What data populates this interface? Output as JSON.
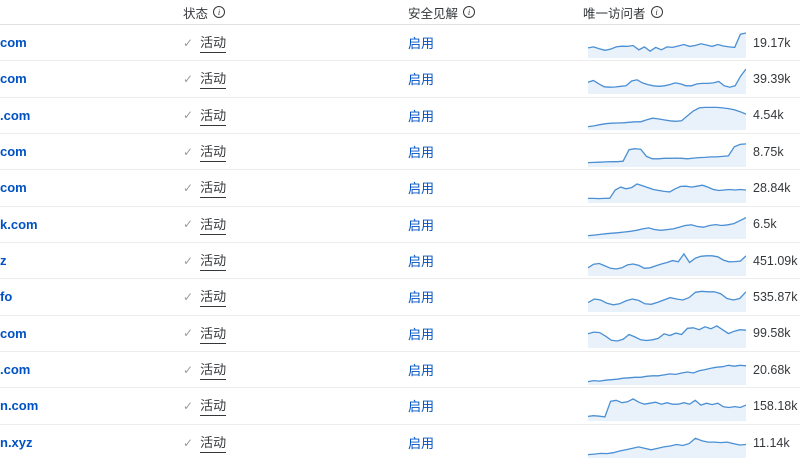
{
  "header": {
    "status_label": "状态",
    "security_label": "安全见解",
    "visitors_label": "唯一访问者"
  },
  "icons": {
    "check": "✓",
    "info": "i"
  },
  "colors": {
    "link_blue": "#0051c3",
    "text_dark": "#35383b",
    "check_gray": "#9a9c9e",
    "separator": "#ececec",
    "spark_line": "#4a8fd4",
    "spark_fill": "#e9f2fb"
  },
  "rows": [
    {
      "domain": "com",
      "status": "活动",
      "security": "启用",
      "visitors": "19.17k",
      "spark": [
        0.38,
        0.42,
        0.34,
        0.28,
        0.33,
        0.42,
        0.45,
        0.44,
        0.48,
        0.3,
        0.42,
        0.24,
        0.4,
        0.3,
        0.42,
        0.4,
        0.46,
        0.52,
        0.44,
        0.48,
        0.55,
        0.5,
        0.44,
        0.52,
        0.46,
        0.42,
        0.4,
        0.95,
        1.0
      ]
    },
    {
      "domain": "com",
      "status": "活动",
      "security": "启用",
      "visitors": "39.39k",
      "spark": [
        0.45,
        0.52,
        0.38,
        0.26,
        0.24,
        0.25,
        0.28,
        0.3,
        0.5,
        0.55,
        0.42,
        0.35,
        0.3,
        0.28,
        0.3,
        0.35,
        0.42,
        0.38,
        0.3,
        0.3,
        0.38,
        0.4,
        0.4,
        0.42,
        0.48,
        0.3,
        0.24,
        0.3,
        0.7,
        1.0
      ]
    },
    {
      "domain": ".com",
      "status": "活动",
      "security": "启用",
      "visitors": "4.54k",
      "spark": [
        0.1,
        0.13,
        0.18,
        0.22,
        0.24,
        0.25,
        0.26,
        0.28,
        0.3,
        0.3,
        0.38,
        0.45,
        0.42,
        0.38,
        0.34,
        0.32,
        0.34,
        0.55,
        0.75,
        0.88,
        0.9,
        0.9,
        0.9,
        0.88,
        0.85,
        0.8,
        0.72,
        0.62
      ]
    },
    {
      "domain": "com",
      "status": "活动",
      "security": "启用",
      "visitors": "8.75k",
      "spark": [
        0.14,
        0.15,
        0.16,
        0.17,
        0.18,
        0.18,
        0.2,
        0.68,
        0.72,
        0.7,
        0.4,
        0.3,
        0.3,
        0.32,
        0.32,
        0.33,
        0.32,
        0.3,
        0.33,
        0.35,
        0.36,
        0.38,
        0.38,
        0.4,
        0.42,
        0.8,
        0.9,
        0.92
      ]
    },
    {
      "domain": "com",
      "status": "活动",
      "security": "启用",
      "visitors": "28.84k",
      "spark": [
        0.15,
        0.15,
        0.14,
        0.15,
        0.16,
        0.5,
        0.62,
        0.55,
        0.6,
        0.75,
        0.68,
        0.6,
        0.52,
        0.48,
        0.44,
        0.42,
        0.55,
        0.65,
        0.66,
        0.62,
        0.66,
        0.7,
        0.62,
        0.52,
        0.48,
        0.5,
        0.52,
        0.5,
        0.52,
        0.5
      ]
    },
    {
      "domain": "k.com",
      "status": "活动",
      "security": "启用",
      "visitors": "6.5k",
      "spark": [
        0.1,
        0.12,
        0.15,
        0.18,
        0.2,
        0.22,
        0.25,
        0.28,
        0.32,
        0.38,
        0.42,
        0.35,
        0.32,
        0.35,
        0.38,
        0.45,
        0.52,
        0.55,
        0.48,
        0.45,
        0.52,
        0.56,
        0.52,
        0.55,
        0.6,
        0.72,
        0.85
      ]
    },
    {
      "domain": "z",
      "status": "活动",
      "security": "启用",
      "visitors": "451.09k",
      "spark": [
        0.3,
        0.45,
        0.48,
        0.38,
        0.28,
        0.25,
        0.3,
        0.42,
        0.46,
        0.4,
        0.28,
        0.3,
        0.38,
        0.46,
        0.52,
        0.6,
        0.55,
        0.88,
        0.52,
        0.7,
        0.78,
        0.8,
        0.8,
        0.76,
        0.62,
        0.55,
        0.56,
        0.58,
        0.8
      ]
    },
    {
      "domain": "fo",
      "status": "活动",
      "security": "启用",
      "visitors": "535.87k",
      "spark": [
        0.35,
        0.5,
        0.46,
        0.32,
        0.26,
        0.3,
        0.42,
        0.5,
        0.44,
        0.3,
        0.28,
        0.36,
        0.46,
        0.56,
        0.5,
        0.46,
        0.56,
        0.78,
        0.82,
        0.8,
        0.8,
        0.72,
        0.52,
        0.46,
        0.52,
        0.8
      ]
    },
    {
      "domain": "com",
      "status": "活动",
      "security": "启用",
      "visitors": "99.58k",
      "spark": [
        0.55,
        0.62,
        0.6,
        0.45,
        0.28,
        0.25,
        0.32,
        0.52,
        0.42,
        0.3,
        0.27,
        0.3,
        0.36,
        0.55,
        0.48,
        0.58,
        0.52,
        0.78,
        0.8,
        0.72,
        0.84,
        0.76,
        0.88,
        0.72,
        0.56,
        0.66,
        0.72,
        0.7
      ]
    },
    {
      "domain": ".com",
      "status": "活动",
      "security": "启用",
      "visitors": "20.68k",
      "spark": [
        0.1,
        0.14,
        0.12,
        0.16,
        0.18,
        0.2,
        0.24,
        0.26,
        0.28,
        0.28,
        0.32,
        0.34,
        0.34,
        0.38,
        0.42,
        0.4,
        0.46,
        0.5,
        0.46,
        0.55,
        0.6,
        0.66,
        0.7,
        0.72,
        0.78,
        0.74,
        0.78,
        0.76
      ]
    },
    {
      "domain": "n.com",
      "status": "活动",
      "security": "启用",
      "visitors": "158.18k",
      "spark": [
        0.15,
        0.18,
        0.16,
        0.13,
        0.78,
        0.82,
        0.72,
        0.76,
        0.88,
        0.74,
        0.66,
        0.7,
        0.74,
        0.66,
        0.72,
        0.66,
        0.66,
        0.72,
        0.66,
        0.82,
        0.62,
        0.7,
        0.64,
        0.7,
        0.55,
        0.52,
        0.56,
        0.52,
        0.62
      ]
    },
    {
      "domain": "n.xyz",
      "status": "活动",
      "security": "启用",
      "visitors": "11.14k",
      "spark": [
        0.1,
        0.12,
        0.15,
        0.14,
        0.18,
        0.25,
        0.3,
        0.36,
        0.42,
        0.36,
        0.3,
        0.36,
        0.42,
        0.46,
        0.52,
        0.48,
        0.56,
        0.78,
        0.68,
        0.62,
        0.62,
        0.6,
        0.62,
        0.56,
        0.5,
        0.52
      ]
    }
  ]
}
